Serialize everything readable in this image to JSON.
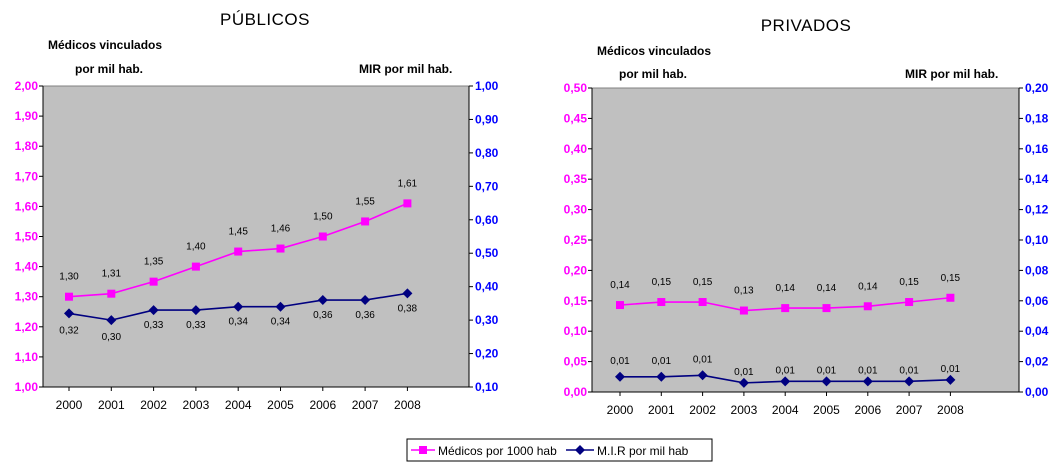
{
  "colors": {
    "primary_series": "#ff00ff",
    "secondary_series": "#000080",
    "left_axis": "#ff00ff",
    "right_axis": "#0000ff",
    "plot_background": "#c0c0c0"
  },
  "legend": {
    "items": [
      {
        "label": "Médicos por 1000 hab",
        "marker": "square",
        "color": "#ff00ff"
      },
      {
        "label": "M.I.R por mil hab",
        "marker": "diamond",
        "color": "#000080"
      }
    ]
  },
  "chart_data": [
    {
      "type": "line",
      "title": "PÚBLICOS",
      "ylabel_left": [
        "Médicos vinculados",
        "por mil hab."
      ],
      "ylabel_right": "MIR por mil hab.",
      "categories": [
        "2000",
        "2001",
        "2002",
        "2003",
        "2004",
        "2005",
        "2006",
        "2007",
        "2008"
      ],
      "yticks_left": [
        "1,00",
        "1,10",
        "1,20",
        "1,30",
        "1,40",
        "1,50",
        "1,60",
        "1,70",
        "1,80",
        "1,90",
        "2,00"
      ],
      "yticks_right": [
        "0,10",
        "0,20",
        "0,30",
        "0,40",
        "0,50",
        "0,60",
        "0,70",
        "0,80",
        "0,90",
        "1,00"
      ],
      "ylim_left": [
        1.0,
        2.0
      ],
      "ylim_right": [
        0.1,
        1.0
      ],
      "grid": false,
      "series": [
        {
          "name": "Médicos por 1000 hab",
          "axis": "left",
          "values": [
            1.3,
            1.31,
            1.35,
            1.4,
            1.45,
            1.46,
            1.5,
            1.55,
            1.61
          ],
          "labels": [
            "1,30",
            "1,31",
            "1,35",
            "1,40",
            "1,45",
            "1,46",
            "1,50",
            "1,55",
            "1,61"
          ]
        },
        {
          "name": "M.I.R por mil hab",
          "axis": "right",
          "values": [
            0.32,
            0.3,
            0.33,
            0.33,
            0.34,
            0.34,
            0.36,
            0.36,
            0.38
          ],
          "labels": [
            "0,32",
            "0,30",
            "0,33",
            "0,33",
            "0,34",
            "0,34",
            "0,36",
            "0,36",
            "0,38"
          ]
        }
      ]
    },
    {
      "type": "line",
      "title": "PRIVADOS",
      "ylabel_left": [
        "Médicos vinculados",
        "por mil hab."
      ],
      "ylabel_right": "MIR por mil hab.",
      "categories": [
        "2000",
        "2001",
        "2002",
        "2003",
        "2004",
        "2005",
        "2006",
        "2007",
        "2008"
      ],
      "yticks_left": [
        "0,00",
        "0,05",
        "0,10",
        "0,15",
        "0,20",
        "0,25",
        "0,30",
        "0,35",
        "0,40",
        "0,45",
        "0,50"
      ],
      "yticks_right": [
        "0,00",
        "0,02",
        "0,04",
        "0,06",
        "0,08",
        "0,10",
        "0,12",
        "0,14",
        "0,16",
        "0,18",
        "0,20"
      ],
      "ylim_left": [
        0.0,
        0.5
      ],
      "ylim_right": [
        0.0,
        0.2
      ],
      "grid": false,
      "series": [
        {
          "name": "Médicos por 1000 hab",
          "axis": "left",
          "values": [
            0.143,
            0.148,
            0.148,
            0.134,
            0.138,
            0.138,
            0.141,
            0.148,
            0.155
          ],
          "labels": [
            "0,14",
            "0,15",
            "0,15",
            "0,13",
            "0,14",
            "0,14",
            "0,14",
            "0,15",
            "0,15"
          ]
        },
        {
          "name": "M.I.R por mil hab",
          "axis": "right",
          "values": [
            0.01,
            0.01,
            0.011,
            0.006,
            0.007,
            0.007,
            0.007,
            0.007,
            0.008
          ],
          "labels": [
            "0,01",
            "0,01",
            "0,01",
            "0,01",
            "0,01",
            "0,01",
            "0,01",
            "0,01",
            "0,01"
          ]
        }
      ]
    }
  ]
}
